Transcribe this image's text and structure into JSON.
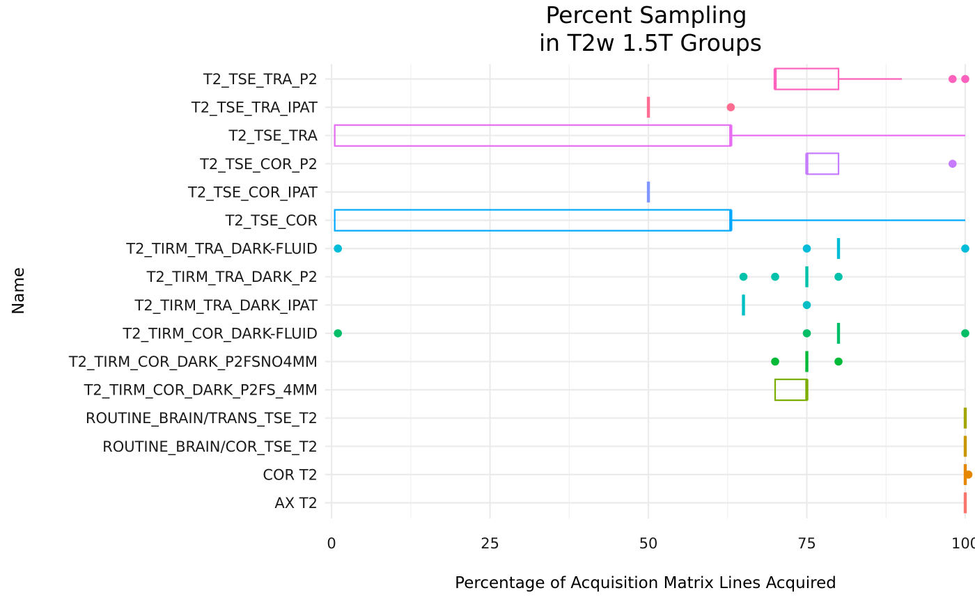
{
  "chart_data": {
    "type": "boxplot",
    "title": [
      "Percent Sampling",
      "in T2w 1.5T Groups"
    ],
    "xlabel": "Percentage of Acquisition Matrix Lines Acquired",
    "ylabel": "Name",
    "xlim": [
      -1,
      100
    ],
    "xticks": [
      0,
      25,
      50,
      75,
      100
    ],
    "grid": true,
    "legend": "none",
    "categories": [
      "T2_TSE_TRA_P2",
      "T2_TSE_TRA_IPAT",
      "T2_TSE_TRA",
      "T2_TSE_COR_P2",
      "T2_TSE_COR_IPAT",
      "T2_TSE_COR",
      "T2_TIRM_TRA_DARK-FLUID",
      "T2_TIRM_TRA_DARK_P2",
      "T2_TIRM_TRA_DARK_IPAT",
      "T2_TIRM_COR_DARK-FLUID",
      "T2_TIRM_COR_DARK_P2FSNO4MM",
      "T2_TIRM_COR_DARK_P2FS_4MM",
      "ROUTINE_BRAIN/TRANS_TSE_T2",
      "ROUTINE_BRAIN/COR_TSE_T2",
      "COR T2",
      "AX T2"
    ],
    "boxes": [
      {
        "name": "T2_TSE_TRA_P2",
        "color": "#FF62BC",
        "whisker_low": 70,
        "q1": 70,
        "median": 70,
        "q3": 80,
        "whisker_high": 90,
        "outliers": [
          98,
          100
        ]
      },
      {
        "name": "T2_TSE_TRA_IPAT",
        "color": "#FF6C91",
        "whisker_low": 50,
        "q1": 50,
        "median": 50,
        "q3": 50,
        "whisker_high": 50,
        "outliers": [
          63
        ]
      },
      {
        "name": "T2_TSE_TRA",
        "color": "#E76BF3",
        "whisker_low": 0.5,
        "q1": 0.5,
        "median": 63,
        "q3": 63,
        "whisker_high": 100,
        "outliers": []
      },
      {
        "name": "T2_TSE_COR_P2",
        "color": "#C77CFF",
        "whisker_low": 75,
        "q1": 75,
        "median": 75,
        "q3": 80,
        "whisker_high": 80,
        "outliers": [
          98
        ]
      },
      {
        "name": "T2_TSE_COR_IPAT",
        "color": "#7F96FF",
        "whisker_low": 50,
        "q1": 50,
        "median": 50,
        "q3": 50,
        "whisker_high": 50,
        "outliers": []
      },
      {
        "name": "T2_TSE_COR",
        "color": "#00A9FF",
        "whisker_low": 0.5,
        "q1": 0.5,
        "median": 63,
        "q3": 63,
        "whisker_high": 100,
        "outliers": []
      },
      {
        "name": "T2_TIRM_TRA_DARK-FLUID",
        "color": "#00BCD8",
        "whisker_low": 80,
        "q1": 80,
        "median": 80,
        "q3": 80,
        "whisker_high": 80,
        "outliers": [
          1,
          75,
          100
        ]
      },
      {
        "name": "T2_TIRM_TRA_DARK_P2",
        "color": "#00C1A9",
        "whisker_low": 75,
        "q1": 75,
        "median": 75,
        "q3": 75,
        "whisker_high": 75,
        "outliers": [
          65,
          70,
          80
        ]
      },
      {
        "name": "T2_TIRM_TRA_DARK_IPAT",
        "color": "#00BFC4",
        "whisker_low": 65,
        "q1": 65,
        "median": 65,
        "q3": 65,
        "whisker_high": 65,
        "outliers": [
          75
        ]
      },
      {
        "name": "T2_TIRM_COR_DARK-FLUID",
        "color": "#00BE67",
        "whisker_low": 80,
        "q1": 80,
        "median": 80,
        "q3": 80,
        "whisker_high": 80,
        "outliers": [
          1,
          75,
          100
        ]
      },
      {
        "name": "T2_TIRM_COR_DARK_P2FSNO4MM",
        "color": "#00BA38",
        "whisker_low": 75,
        "q1": 75,
        "median": 75,
        "q3": 75,
        "whisker_high": 75,
        "outliers": [
          70,
          80
        ]
      },
      {
        "name": "T2_TIRM_COR_DARK_P2FS_4MM",
        "color": "#7CAE00",
        "whisker_low": 70,
        "q1": 70,
        "median": 75,
        "q3": 75,
        "whisker_high": 75,
        "outliers": []
      },
      {
        "name": "ROUTINE_BRAIN/TRANS_TSE_T2",
        "color": "#A3A500",
        "whisker_low": 100,
        "q1": 100,
        "median": 100,
        "q3": 100,
        "whisker_high": 100,
        "outliers": []
      },
      {
        "name": "ROUTINE_BRAIN/COR_TSE_T2",
        "color": "#C99800",
        "whisker_low": 100,
        "q1": 100,
        "median": 100,
        "q3": 100,
        "whisker_high": 100,
        "outliers": []
      },
      {
        "name": "COR T2",
        "color": "#E58700",
        "whisker_low": 100,
        "q1": 100,
        "median": 100,
        "q3": 100,
        "whisker_high": 100,
        "outliers": [
          100.5
        ]
      },
      {
        "name": "AX T2",
        "color": "#F8766D",
        "whisker_low": 100,
        "q1": 100,
        "median": 100,
        "q3": 100,
        "whisker_high": 100,
        "outliers": []
      }
    ]
  }
}
